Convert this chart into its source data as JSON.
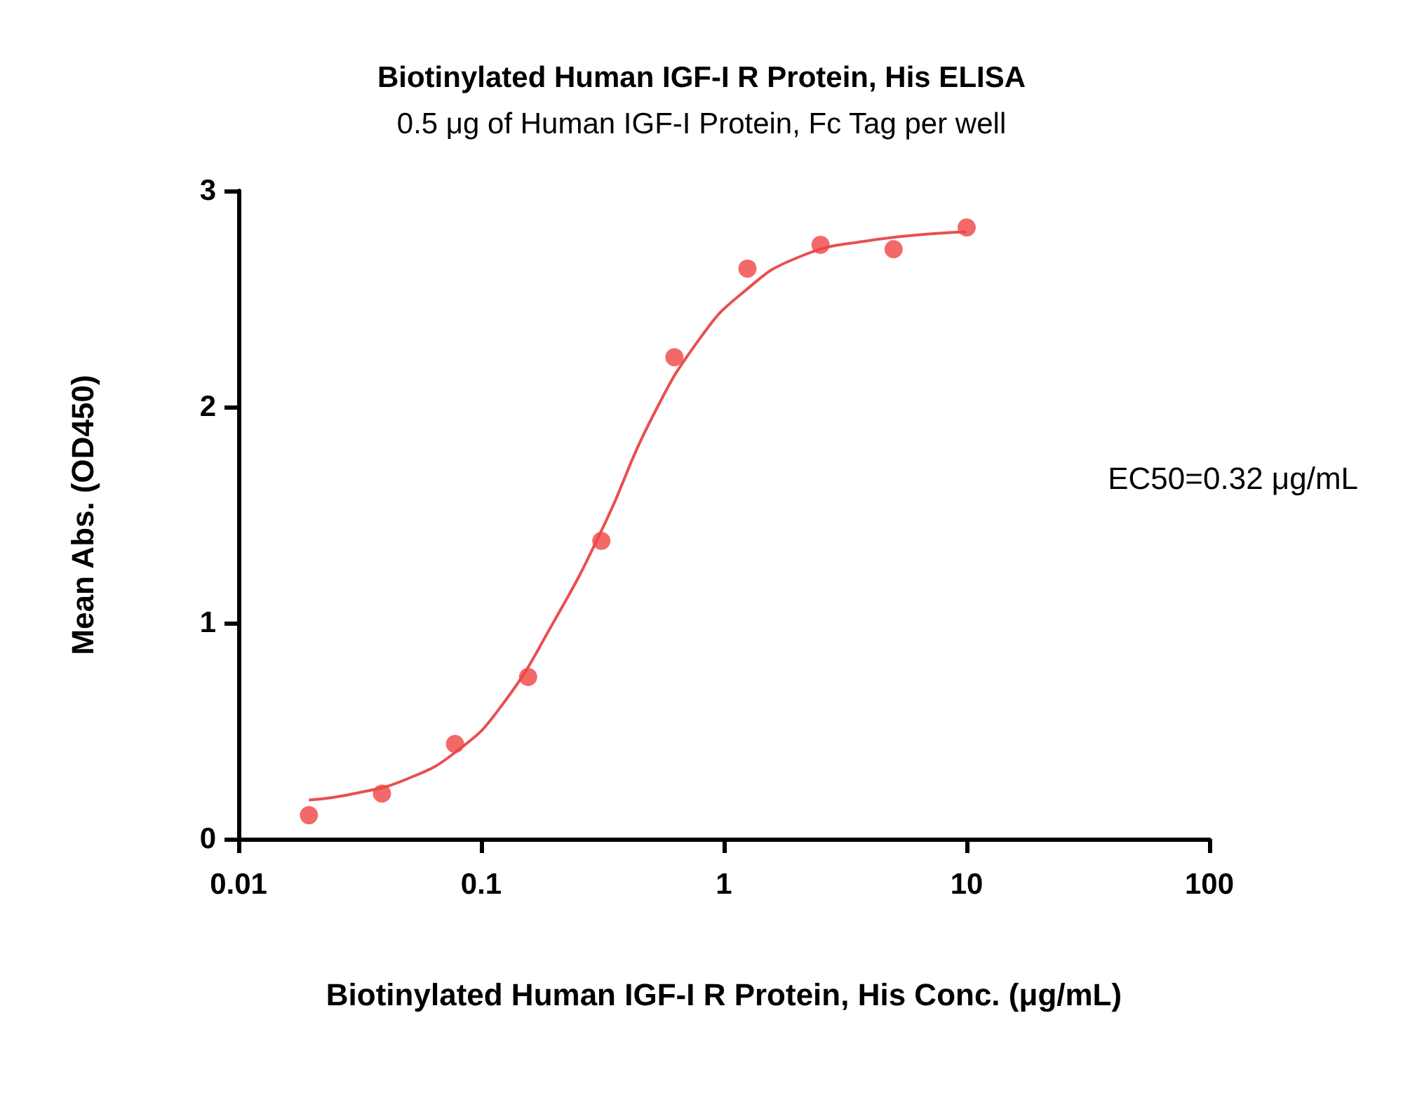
{
  "chart_data": {
    "type": "scatter",
    "title": "Biotinylated Human IGF-I R Protein, His ELISA",
    "subtitle": "0.5 μg of Human IGF-I Protein, Fc Tag per well",
    "xlabel": "Biotinylated Human IGF-I R Protein, His Conc. (μg/mL)",
    "ylabel": "Mean Abs. (OD450)",
    "annotations": [
      "EC50=0.32 μg/mL"
    ],
    "log": "x",
    "xlim": [
      0.01,
      100
    ],
    "xticks": [
      0.01,
      0.1,
      1,
      10,
      100
    ],
    "ylim": [
      0,
      3
    ],
    "yticks": [
      0,
      1,
      2,
      3
    ],
    "grid": false,
    "series": [
      {
        "marker": "circle",
        "color": "#ef4444",
        "x": [
          0.0195,
          0.039,
          0.078,
          0.156,
          0.3125,
          0.625,
          1.25,
          2.5,
          5,
          10
        ],
        "values": [
          0.11,
          0.21,
          0.44,
          0.75,
          1.38,
          2.23,
          2.64,
          2.75,
          2.73,
          2.83
        ]
      },
      {
        "type": "line",
        "marker": "none",
        "color": "#e85050",
        "x": [
          0.0195,
          0.03,
          0.05,
          0.08,
          0.12,
          0.2,
          0.32,
          0.5,
          0.8,
          1.2,
          2,
          4,
          10
        ],
        "values": [
          0.18,
          0.21,
          0.28,
          0.41,
          0.61,
          1.01,
          1.45,
          1.94,
          2.32,
          2.53,
          2.69,
          2.77,
          2.81
        ]
      }
    ]
  }
}
